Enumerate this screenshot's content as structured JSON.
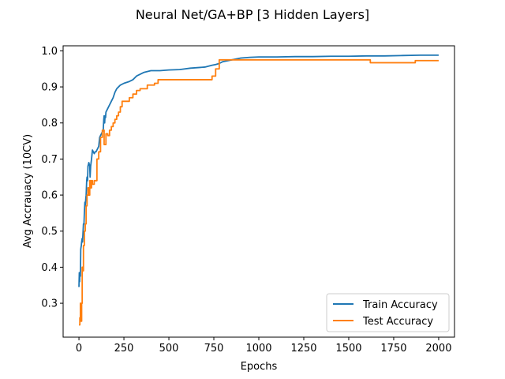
{
  "chart_data": {
    "type": "line",
    "title": "Neural Net/GA+BP [3 Hidden Layers]",
    "xlabel": "Epochs",
    "ylabel": "Avg Accrauacy (10CV)",
    "xlim": [
      -88,
      2088
    ],
    "ylim": [
      0.206,
      1.014
    ],
    "xticks": [
      0,
      250,
      500,
      750,
      1000,
      1250,
      1500,
      1750,
      2000
    ],
    "xtick_labels": [
      "0",
      "250",
      "500",
      "750",
      "1000",
      "1250",
      "1500",
      "1750",
      "2000"
    ],
    "yticks": [
      0.3,
      0.4,
      0.5,
      0.6,
      0.7,
      0.8,
      0.9,
      1.0
    ],
    "ytick_labels": [
      "0.3",
      "0.4",
      "0.5",
      "0.6",
      "0.7",
      "0.8",
      "0.9",
      "1.0"
    ],
    "grid": false,
    "legend": "lower-right",
    "series": [
      {
        "name": "Train Accuracy",
        "color": "#1f77b4",
        "step": false,
        "x": [
          0,
          2,
          4,
          5,
          8,
          10,
          13,
          15,
          18,
          20,
          23,
          25,
          28,
          30,
          33,
          35,
          38,
          40,
          43,
          45,
          48,
          50,
          55,
          60,
          62,
          65,
          70,
          75,
          80,
          85,
          90,
          95,
          100,
          105,
          110,
          115,
          120,
          125,
          130,
          135,
          138,
          140,
          143,
          145,
          148,
          150,
          160,
          170,
          180,
          190,
          200,
          210,
          220,
          230,
          250,
          280,
          300,
          320,
          340,
          360,
          400,
          450,
          500,
          560,
          620,
          700,
          740,
          760,
          780,
          800,
          850,
          900,
          950,
          1000,
          1100,
          1200,
          1300,
          1400,
          1500,
          1600,
          1700,
          1800,
          1900,
          2000
        ],
        "y": [
          0.345,
          0.385,
          0.36,
          0.38,
          0.375,
          0.45,
          0.46,
          0.47,
          0.48,
          0.47,
          0.5,
          0.52,
          0.52,
          0.55,
          0.58,
          0.57,
          0.59,
          0.6,
          0.64,
          0.65,
          0.64,
          0.68,
          0.69,
          0.68,
          0.65,
          0.68,
          0.7,
          0.725,
          0.72,
          0.715,
          0.72,
          0.72,
          0.725,
          0.73,
          0.735,
          0.76,
          0.765,
          0.77,
          0.775,
          0.78,
          0.81,
          0.82,
          0.8,
          0.82,
          0.815,
          0.83,
          0.84,
          0.85,
          0.86,
          0.87,
          0.885,
          0.895,
          0.9,
          0.905,
          0.91,
          0.915,
          0.92,
          0.93,
          0.935,
          0.94,
          0.945,
          0.945,
          0.947,
          0.948,
          0.952,
          0.955,
          0.96,
          0.962,
          0.965,
          0.97,
          0.975,
          0.98,
          0.982,
          0.983,
          0.983,
          0.984,
          0.984,
          0.985,
          0.985,
          0.986,
          0.986,
          0.987,
          0.988,
          0.988
        ]
      },
      {
        "name": "Test Accuracy",
        "color": "#ff7f0e",
        "step": true,
        "x": [
          0,
          5,
          8,
          10,
          12,
          15,
          18,
          20,
          25,
          30,
          35,
          40,
          45,
          50,
          55,
          60,
          65,
          70,
          75,
          80,
          85,
          90,
          100,
          110,
          120,
          130,
          140,
          150,
          160,
          170,
          180,
          190,
          200,
          210,
          220,
          230,
          240,
          260,
          280,
          300,
          320,
          340,
          380,
          420,
          440,
          500,
          600,
          700,
          740,
          760,
          780,
          800,
          1000,
          1200,
          1400,
          1600,
          1620,
          1700,
          1800,
          1850,
          1870,
          1900,
          2000
        ],
        "y": [
          0.24,
          0.26,
          0.3,
          0.27,
          0.25,
          0.3,
          0.4,
          0.39,
          0.46,
          0.5,
          0.52,
          0.57,
          0.6,
          0.62,
          0.6,
          0.64,
          0.62,
          0.64,
          0.63,
          0.63,
          0.64,
          0.64,
          0.7,
          0.72,
          0.76,
          0.78,
          0.74,
          0.77,
          0.765,
          0.78,
          0.79,
          0.8,
          0.81,
          0.82,
          0.83,
          0.845,
          0.86,
          0.86,
          0.87,
          0.88,
          0.89,
          0.895,
          0.905,
          0.91,
          0.92,
          0.92,
          0.92,
          0.92,
          0.93,
          0.95,
          0.975,
          0.975,
          0.975,
          0.975,
          0.975,
          0.975,
          0.967,
          0.967,
          0.967,
          0.967,
          0.973,
          0.973,
          0.973
        ]
      }
    ]
  }
}
